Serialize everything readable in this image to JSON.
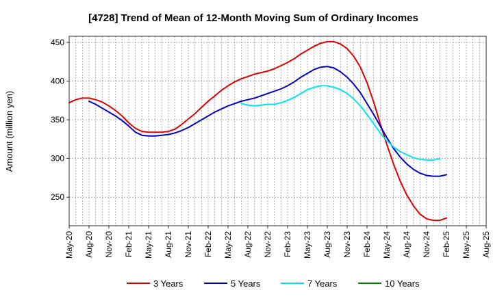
{
  "chart_data": {
    "type": "line",
    "title": "[4728]  Trend of Mean of 12-Month Moving Sum of Ordinary Incomes",
    "xlabel": "",
    "ylabel": "Amount (million yen)",
    "ylim": [
      213,
      458
    ],
    "yticks": [
      250,
      300,
      350,
      400,
      450
    ],
    "categories": [
      "May-20",
      "Aug-20",
      "Nov-20",
      "Feb-21",
      "May-21",
      "Aug-21",
      "Nov-21",
      "Feb-22",
      "May-22",
      "Aug-22",
      "Nov-22",
      "Feb-23",
      "May-23",
      "Aug-23",
      "Nov-23",
      "Feb-24",
      "May-24",
      "Aug-24",
      "Nov-24",
      "Feb-25",
      "May-25",
      "Aug-25"
    ],
    "grid": true,
    "legend_position": "bottom",
    "series": [
      {
        "name": "3 Years",
        "color": "#dd0000",
        "x": [
          0,
          1,
          2,
          3,
          4,
          5,
          6,
          7,
          8,
          9,
          10,
          11,
          12,
          13,
          14,
          15,
          16,
          17,
          18,
          19,
          20,
          21,
          22,
          23,
          24,
          25,
          26,
          27,
          28,
          29,
          30,
          31,
          32,
          33,
          34,
          35,
          36,
          37,
          38,
          39,
          40,
          41,
          42,
          43,
          44,
          45,
          46,
          47,
          48,
          49,
          50,
          51,
          52,
          53,
          54,
          55,
          56,
          57,
          58,
          59,
          60
        ],
        "values": [
          372,
          376,
          378,
          378,
          376,
          373,
          368,
          362,
          355,
          346,
          339,
          335,
          334,
          334,
          334,
          335,
          338,
          344,
          351,
          358,
          366,
          374,
          381,
          388,
          394,
          399,
          403,
          406,
          409,
          411,
          413,
          416,
          420,
          424,
          429,
          435,
          440,
          445,
          449,
          451,
          451,
          448,
          442,
          432,
          418,
          398,
          373,
          345,
          318,
          293,
          271,
          253,
          239,
          228,
          222,
          220,
          220,
          223,
          null,
          null,
          null
        ]
      },
      {
        "name": "5 Years",
        "color": "#0000cc",
        "x": [
          0,
          1,
          2,
          3,
          4,
          5,
          6,
          7,
          8,
          9,
          10,
          11,
          12,
          13,
          14,
          15,
          16,
          17,
          18,
          19,
          20,
          21,
          22,
          23,
          24,
          25,
          26,
          27,
          28,
          29,
          30,
          31,
          32,
          33,
          34,
          35,
          36,
          37,
          38,
          39,
          40,
          41,
          42,
          43,
          44,
          45,
          46,
          47,
          48,
          49,
          50,
          51,
          52,
          53,
          54,
          55,
          56,
          57,
          58,
          59,
          60
        ],
        "values": [
          null,
          null,
          null,
          374,
          370,
          365,
          360,
          355,
          349,
          342,
          334,
          330,
          329,
          329,
          330,
          331,
          333,
          336,
          340,
          345,
          350,
          355,
          360,
          364,
          368,
          371,
          374,
          376,
          378,
          381,
          384,
          387,
          390,
          394,
          399,
          405,
          410,
          415,
          418,
          419,
          417,
          412,
          405,
          396,
          385,
          371,
          357,
          342,
          327,
          313,
          302,
          293,
          286,
          281,
          278,
          277,
          277,
          279,
          null,
          null,
          null
        ]
      },
      {
        "name": "7 Years",
        "color": "#00e5ee",
        "x": [
          0,
          1,
          2,
          3,
          4,
          5,
          6,
          7,
          8,
          9,
          10,
          11,
          12,
          13,
          14,
          15,
          16,
          17,
          18,
          19,
          20,
          21,
          22,
          23,
          24,
          25,
          26,
          27,
          28,
          29,
          30,
          31,
          32,
          33,
          34,
          35,
          36,
          37,
          38,
          39,
          40,
          41,
          42,
          43,
          44,
          45,
          46,
          47,
          48,
          49,
          50,
          51,
          52,
          53,
          54,
          55,
          56,
          57,
          58,
          59,
          60
        ],
        "values": [
          null,
          null,
          null,
          null,
          null,
          null,
          null,
          null,
          null,
          null,
          null,
          null,
          null,
          null,
          null,
          null,
          null,
          null,
          null,
          null,
          null,
          null,
          null,
          null,
          null,
          null,
          371,
          369,
          368,
          369,
          370,
          370,
          372,
          375,
          379,
          384,
          389,
          392,
          394,
          394,
          392,
          389,
          384,
          377,
          368,
          357,
          345,
          333,
          323,
          315,
          309,
          305,
          301,
          299,
          298,
          298,
          300,
          null,
          null,
          null,
          null
        ]
      },
      {
        "name": "10 Years",
        "color": "#008000",
        "x": [],
        "values": []
      }
    ]
  }
}
